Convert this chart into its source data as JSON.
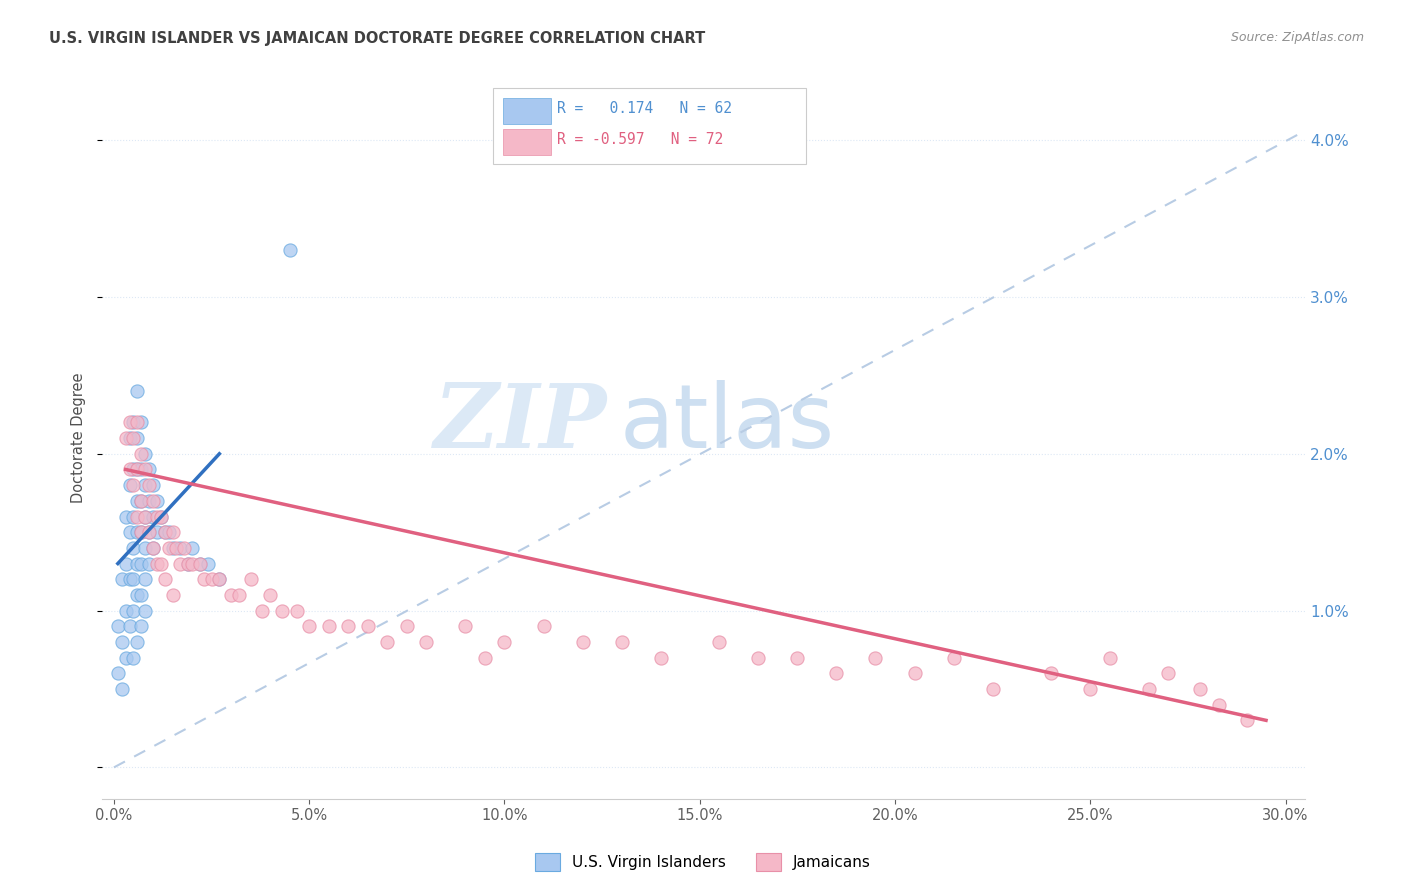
{
  "title": "U.S. VIRGIN ISLANDER VS JAMAICAN DOCTORATE DEGREE CORRELATION CHART",
  "source": "Source: ZipAtlas.com",
  "ylabel": "Doctorate Degree",
  "xlim": [
    -0.003,
    0.305
  ],
  "ylim": [
    -0.002,
    0.044
  ],
  "xticks": [
    0.0,
    0.05,
    0.1,
    0.15,
    0.2,
    0.25,
    0.3
  ],
  "yticks": [
    0.0,
    0.01,
    0.02,
    0.03,
    0.04
  ],
  "ytick_labels": [
    "",
    "1.0%",
    "2.0%",
    "3.0%",
    "4.0%"
  ],
  "xtick_labels": [
    "0.0%",
    "5.0%",
    "10.0%",
    "15.0%",
    "20.0%",
    "25.0%",
    "30.0%"
  ],
  "watermark_zip": "ZIP",
  "watermark_atlas": "atlas",
  "blue_fill": "#a8c8f0",
  "blue_edge": "#6aaae0",
  "pink_fill": "#f5b8c8",
  "pink_edge": "#e890a8",
  "blue_line_color": "#3070c0",
  "pink_line_color": "#e06080",
  "dashed_line_color": "#b8cce4",
  "right_tick_color": "#5090d0",
  "grid_color": "#dde8f5",
  "title_color": "#404040",
  "source_color": "#909090",
  "legend_edge_color": "#cccccc",
  "blue_scatter_x": [
    0.001,
    0.001,
    0.002,
    0.002,
    0.002,
    0.003,
    0.003,
    0.003,
    0.003,
    0.004,
    0.004,
    0.004,
    0.004,
    0.004,
    0.005,
    0.005,
    0.005,
    0.005,
    0.005,
    0.005,
    0.005,
    0.006,
    0.006,
    0.006,
    0.006,
    0.006,
    0.006,
    0.006,
    0.006,
    0.007,
    0.007,
    0.007,
    0.007,
    0.007,
    0.007,
    0.007,
    0.008,
    0.008,
    0.008,
    0.008,
    0.008,
    0.008,
    0.009,
    0.009,
    0.009,
    0.009,
    0.01,
    0.01,
    0.01,
    0.011,
    0.011,
    0.012,
    0.013,
    0.014,
    0.015,
    0.017,
    0.019,
    0.02,
    0.022,
    0.024,
    0.027,
    0.045
  ],
  "blue_scatter_y": [
    0.009,
    0.006,
    0.012,
    0.008,
    0.005,
    0.016,
    0.013,
    0.01,
    0.007,
    0.021,
    0.018,
    0.015,
    0.012,
    0.009,
    0.022,
    0.019,
    0.016,
    0.014,
    0.012,
    0.01,
    0.007,
    0.024,
    0.021,
    0.019,
    0.017,
    0.015,
    0.013,
    0.011,
    0.008,
    0.022,
    0.019,
    0.017,
    0.015,
    0.013,
    0.011,
    0.009,
    0.02,
    0.018,
    0.016,
    0.014,
    0.012,
    0.01,
    0.019,
    0.017,
    0.015,
    0.013,
    0.018,
    0.016,
    0.014,
    0.017,
    0.015,
    0.016,
    0.015,
    0.015,
    0.014,
    0.014,
    0.013,
    0.014,
    0.013,
    0.013,
    0.012,
    0.033
  ],
  "pink_scatter_x": [
    0.003,
    0.004,
    0.004,
    0.005,
    0.005,
    0.006,
    0.006,
    0.006,
    0.007,
    0.007,
    0.007,
    0.008,
    0.008,
    0.009,
    0.009,
    0.01,
    0.01,
    0.011,
    0.011,
    0.012,
    0.012,
    0.013,
    0.013,
    0.014,
    0.015,
    0.015,
    0.016,
    0.017,
    0.018,
    0.019,
    0.02,
    0.022,
    0.023,
    0.025,
    0.027,
    0.03,
    0.032,
    0.035,
    0.038,
    0.04,
    0.043,
    0.047,
    0.05,
    0.055,
    0.06,
    0.065,
    0.07,
    0.075,
    0.08,
    0.09,
    0.095,
    0.1,
    0.11,
    0.12,
    0.13,
    0.14,
    0.155,
    0.165,
    0.175,
    0.185,
    0.195,
    0.205,
    0.215,
    0.225,
    0.24,
    0.25,
    0.255,
    0.265,
    0.27,
    0.278,
    0.283,
    0.29
  ],
  "pink_scatter_y": [
    0.021,
    0.022,
    0.019,
    0.021,
    0.018,
    0.022,
    0.019,
    0.016,
    0.02,
    0.017,
    0.015,
    0.019,
    0.016,
    0.018,
    0.015,
    0.017,
    0.014,
    0.016,
    0.013,
    0.016,
    0.013,
    0.015,
    0.012,
    0.014,
    0.015,
    0.011,
    0.014,
    0.013,
    0.014,
    0.013,
    0.013,
    0.013,
    0.012,
    0.012,
    0.012,
    0.011,
    0.011,
    0.012,
    0.01,
    0.011,
    0.01,
    0.01,
    0.009,
    0.009,
    0.009,
    0.009,
    0.008,
    0.009,
    0.008,
    0.009,
    0.007,
    0.008,
    0.009,
    0.008,
    0.008,
    0.007,
    0.008,
    0.007,
    0.007,
    0.006,
    0.007,
    0.006,
    0.007,
    0.005,
    0.006,
    0.005,
    0.007,
    0.005,
    0.006,
    0.005,
    0.004,
    0.003
  ],
  "blue_line_x": [
    0.001,
    0.027
  ],
  "blue_line_y": [
    0.013,
    0.02
  ],
  "pink_line_x": [
    0.003,
    0.295
  ],
  "pink_line_y": [
    0.019,
    0.003
  ],
  "diag_line_x": [
    0.0,
    0.305
  ],
  "diag_line_y": [
    0.0,
    0.0406
  ]
}
